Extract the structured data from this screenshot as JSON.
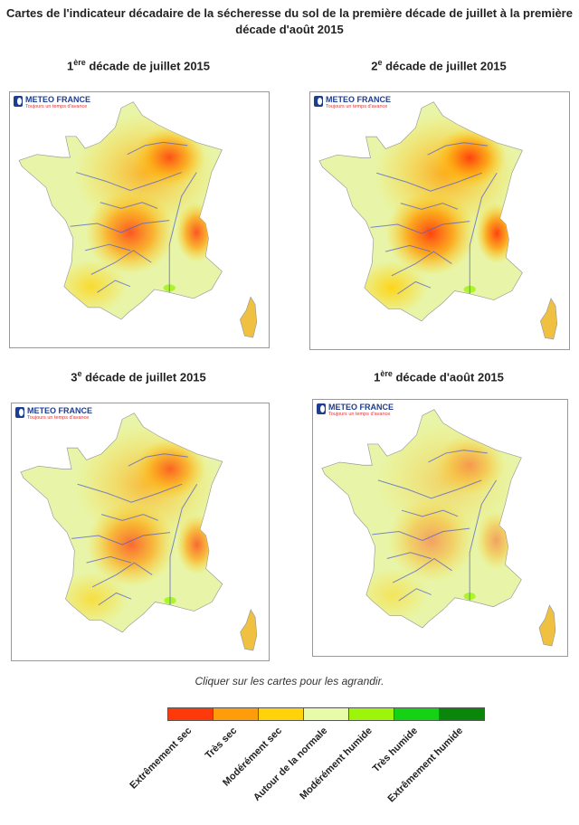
{
  "headline": "Cartes de l'indicateur décadaire de la sécheresse du sol de la première décade de juillet à la première décade d'août 2015",
  "maps": [
    {
      "title_num": "1",
      "title_sup": "ère",
      "title_rest": " décade de juillet 2015",
      "logo_name": "METEO FRANCE",
      "logo_tag": "Toujours un temps d'avance"
    },
    {
      "title_num": "2",
      "title_sup": "e",
      "title_rest": " décade de juillet 2015",
      "logo_name": "METEO FRANCE",
      "logo_tag": "Toujours un temps d'avance"
    },
    {
      "title_num": "3",
      "title_sup": "e",
      "title_rest": " décade de juillet 2015",
      "logo_name": "METEO FRANCE",
      "logo_tag": "Toujours un temps d'avance"
    },
    {
      "title_num": "1",
      "title_sup": "ère",
      "title_rest": " décade d'août 2015",
      "logo_name": "METEO FRANCE",
      "logo_tag": "Toujours un temps d'avance"
    }
  ],
  "caption": "Cliquer sur les cartes pour les agrandir.",
  "legend": [
    {
      "label": "Extrêmement sec",
      "color": "#ff3a0a"
    },
    {
      "label": "Très sec",
      "color": "#ff9c0a"
    },
    {
      "label": "Modérément sec",
      "color": "#ffd20a"
    },
    {
      "label": "Autour de la normale",
      "color": "#e8fba8"
    },
    {
      "label": "Modérément humide",
      "color": "#9cf50a"
    },
    {
      "label": "Très humide",
      "color": "#14d214"
    },
    {
      "label": "Extrêmement humide",
      "color": "#0a870a"
    }
  ]
}
